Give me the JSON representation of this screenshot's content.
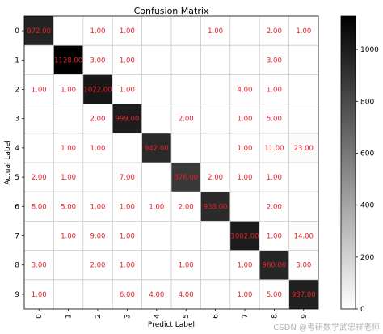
{
  "watermark": "CSDN @考研数学武忠祥老师",
  "chart_data": {
    "type": "heatmap",
    "title": "Confusion Matrix",
    "xlabel": "Predict Label",
    "ylabel": "Actual Label",
    "x_ticks": [
      "0",
      "1",
      "2",
      "3",
      "4",
      "5",
      "6",
      "7",
      "8",
      "9"
    ],
    "y_ticks": [
      "0",
      "1",
      "2",
      "3",
      "4",
      "5",
      "6",
      "7",
      "8",
      "9"
    ],
    "colormap": "gray_r",
    "grid": true,
    "value_format": "2 decimals",
    "value_color": "#e8202a",
    "colorbar": {
      "range": [
        0,
        1128
      ],
      "ticks": [
        0,
        200,
        400,
        600,
        800,
        1000
      ],
      "placement": "right"
    },
    "matrix": [
      [
        972,
        0,
        1,
        1,
        0,
        0,
        1,
        0,
        2,
        1
      ],
      [
        0,
        1128,
        3,
        1,
        0,
        0,
        0,
        0,
        3,
        0
      ],
      [
        1,
        1,
        1022,
        1,
        0,
        0,
        0,
        4,
        1,
        0
      ],
      [
        0,
        0,
        2,
        999,
        0,
        2,
        0,
        1,
        5,
        0
      ],
      [
        0,
        1,
        1,
        0,
        942,
        0,
        0,
        1,
        11,
        23
      ],
      [
        2,
        1,
        0,
        7,
        0,
        876,
        2,
        1,
        1,
        0
      ],
      [
        8,
        5,
        1,
        1,
        1,
        2,
        938,
        0,
        2,
        0
      ],
      [
        0,
        1,
        9,
        1,
        0,
        0,
        0,
        1002,
        1,
        14
      ],
      [
        3,
        0,
        2,
        1,
        0,
        1,
        0,
        1,
        960,
        3
      ],
      [
        1,
        0,
        0,
        6,
        4,
        4,
        0,
        1,
        5,
        987
      ]
    ]
  }
}
